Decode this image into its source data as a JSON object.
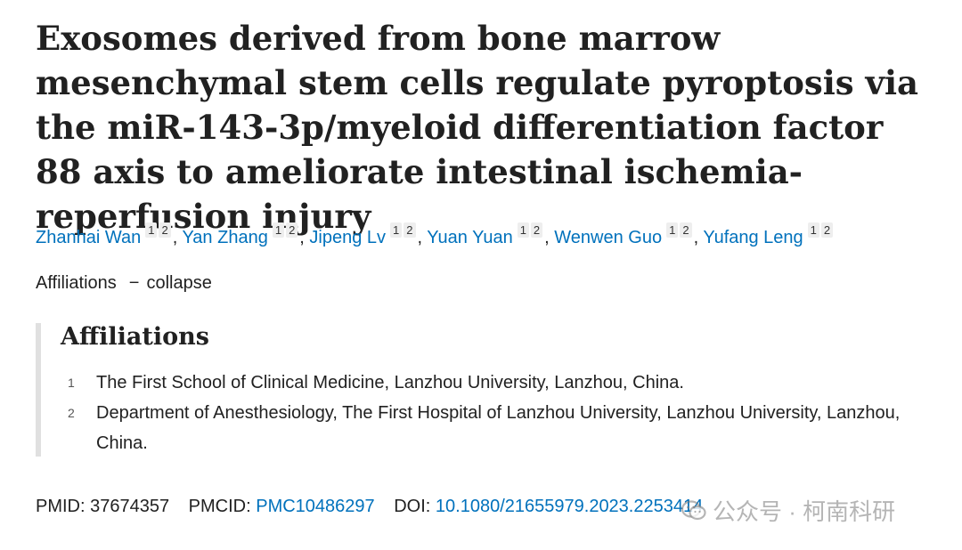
{
  "title": "Exosomes derived from bone marrow mesenchymal stem cells regulate pyroptosis via the miR-143-3p/myeloid differentiation factor 88 axis to ameliorate intestinal ischemia-reperfusion injury",
  "authors": [
    {
      "name": "Zhanhai Wan",
      "affs": [
        "1",
        "2"
      ]
    },
    {
      "name": "Yan Zhang",
      "affs": [
        "1",
        "2"
      ]
    },
    {
      "name": "Jipeng Lv",
      "affs": [
        "1",
        "2"
      ]
    },
    {
      "name": "Yuan Yuan",
      "affs": [
        "1",
        "2"
      ]
    },
    {
      "name": "Wenwen Guo",
      "affs": [
        "1",
        "2"
      ]
    },
    {
      "name": "Yufang Leng",
      "affs": [
        "1",
        "2"
      ]
    }
  ],
  "author_separator": ",",
  "affiliations_toggle": {
    "label": "Affiliations",
    "dash": "−",
    "action": "collapse"
  },
  "affiliations": {
    "heading": "Affiliations",
    "items": [
      {
        "num": "1",
        "text": "The First School of Clinical Medicine, Lanzhou University, Lanzhou, China."
      },
      {
        "num": "2",
        "text": "Department of Anesthesiology, The First Hospital of Lanzhou University, Lanzhou University, Lanzhou, China."
      }
    ]
  },
  "ids": {
    "pmid_label": "PMID:",
    "pmid": "37674357",
    "pmcid_label": "PMCID:",
    "pmcid": "PMC10486297",
    "doi_label": "DOI:",
    "doi": "10.1080/21655979.2023.2253414"
  },
  "watermark": {
    "text": "公众号 · 柯南科研",
    "icon": "wechat-icon"
  },
  "colors": {
    "link": "#0071bc",
    "text": "#212121",
    "border": "#e0e0e0"
  }
}
